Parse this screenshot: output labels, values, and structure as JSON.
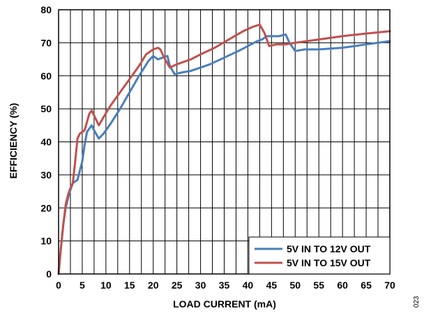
{
  "chart_data": {
    "type": "line",
    "xlabel": "LOAD CURRENT (mA)",
    "ylabel": "EFFICIENCY (%)",
    "xlim": [
      0,
      70
    ],
    "ylim": [
      0,
      80
    ],
    "xticks": [
      0,
      5,
      10,
      15,
      20,
      25,
      30,
      35,
      40,
      45,
      50,
      55,
      60,
      65,
      70
    ],
    "yticks": [
      0,
      10,
      20,
      30,
      40,
      50,
      60,
      70,
      80
    ],
    "x_minor_step": 2.5,
    "grid": true,
    "legend_position": "bottom-right",
    "figure_id": "023",
    "series": [
      {
        "name": "5V IN TO 12V OUT",
        "color": "#4a7ebb",
        "points": [
          [
            0,
            0
          ],
          [
            0.5,
            8
          ],
          [
            1,
            15
          ],
          [
            1.5,
            20
          ],
          [
            2,
            23
          ],
          [
            2.5,
            25.5
          ],
          [
            3,
            27.5
          ],
          [
            4,
            28.5
          ],
          [
            5,
            34
          ],
          [
            5.5,
            39
          ],
          [
            6,
            43
          ],
          [
            7,
            45
          ],
          [
            7.5,
            43.5
          ],
          [
            8.5,
            41
          ],
          [
            9.5,
            42.5
          ],
          [
            11,
            45.5
          ],
          [
            13,
            50
          ],
          [
            15,
            55
          ],
          [
            17,
            60
          ],
          [
            19,
            64.5
          ],
          [
            20,
            66
          ],
          [
            21,
            65
          ],
          [
            22,
            65.5
          ],
          [
            23,
            66
          ],
          [
            23.5,
            63
          ],
          [
            24.5,
            60.5
          ],
          [
            26,
            61
          ],
          [
            28,
            61.5
          ],
          [
            30,
            62.5
          ],
          [
            32,
            63.5
          ],
          [
            35,
            65.5
          ],
          [
            38,
            67.5
          ],
          [
            40,
            69
          ],
          [
            42,
            70.5
          ],
          [
            43,
            71
          ],
          [
            44,
            72
          ],
          [
            45,
            72
          ],
          [
            46.5,
            72
          ],
          [
            48,
            72.5
          ],
          [
            48.8,
            70
          ],
          [
            50,
            67.5
          ],
          [
            52,
            68
          ],
          [
            55,
            68
          ],
          [
            60,
            68.5
          ],
          [
            65,
            69.5
          ],
          [
            70,
            70.5
          ]
        ]
      },
      {
        "name": "5V IN TO 15V OUT",
        "color": "#c0504d",
        "points": [
          [
            0,
            0
          ],
          [
            0.5,
            8
          ],
          [
            1,
            15
          ],
          [
            1.5,
            21
          ],
          [
            2,
            24
          ],
          [
            2.5,
            26
          ],
          [
            3,
            27.5
          ],
          [
            3.5,
            34
          ],
          [
            4,
            41
          ],
          [
            4.5,
            42.5
          ],
          [
            5.5,
            43.5
          ],
          [
            6.5,
            48.5
          ],
          [
            7,
            49.5
          ],
          [
            7.5,
            48
          ],
          [
            8.5,
            45
          ],
          [
            9.5,
            47.5
          ],
          [
            11,
            51
          ],
          [
            13,
            55
          ],
          [
            15,
            59
          ],
          [
            17,
            63
          ],
          [
            18.5,
            66.5
          ],
          [
            20,
            68
          ],
          [
            21,
            68.5
          ],
          [
            21.5,
            68
          ],
          [
            22.5,
            65
          ],
          [
            23.5,
            62.5
          ],
          [
            25,
            63.5
          ],
          [
            28,
            65
          ],
          [
            30,
            66.5
          ],
          [
            33,
            68.5
          ],
          [
            36,
            71
          ],
          [
            39,
            73.5
          ],
          [
            41,
            74.8
          ],
          [
            42.5,
            75.5
          ],
          [
            43.5,
            73
          ],
          [
            44.5,
            69
          ],
          [
            46,
            69.5
          ],
          [
            48,
            69.5
          ],
          [
            50,
            70
          ],
          [
            55,
            71
          ],
          [
            60,
            72
          ],
          [
            65,
            72.8
          ],
          [
            70,
            73.5
          ]
        ]
      }
    ]
  }
}
